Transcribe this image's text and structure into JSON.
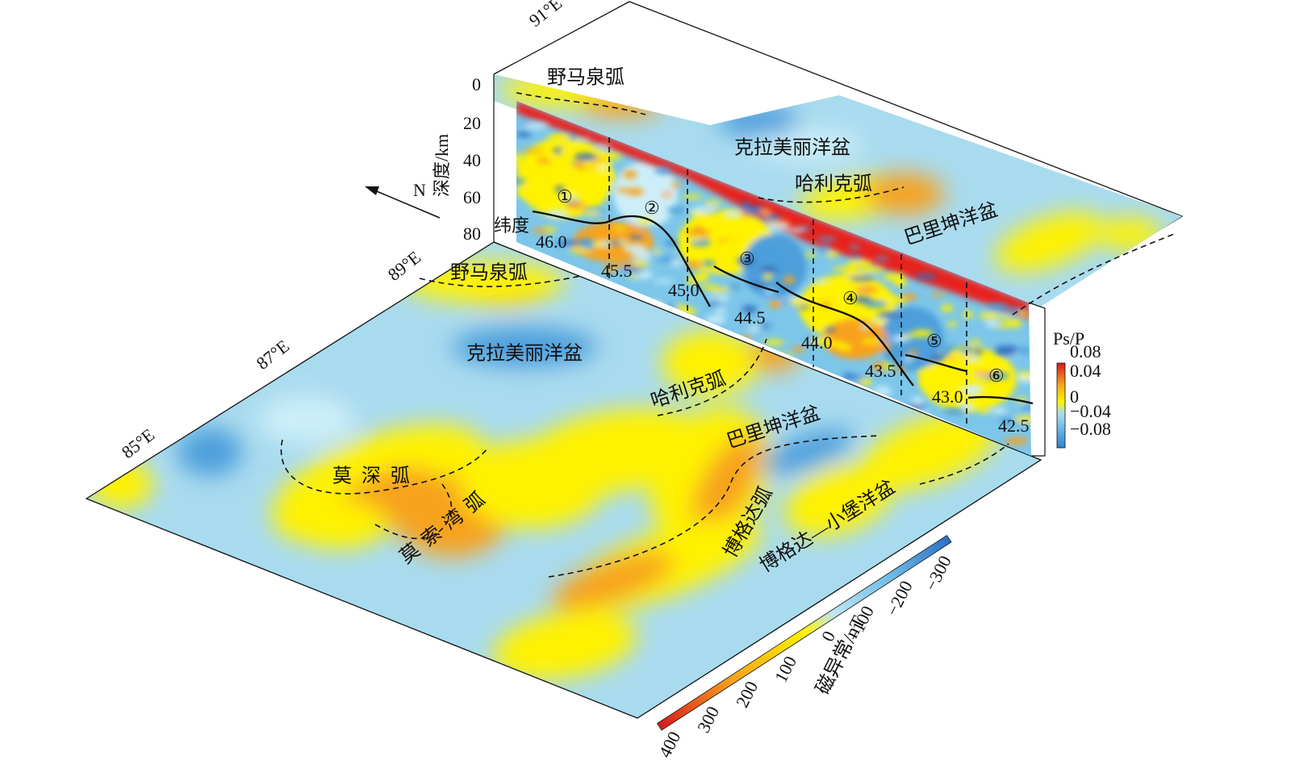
{
  "map": {
    "longitudes": [
      "91°E",
      "89°E",
      "87°E",
      "85°E"
    ],
    "north": "N",
    "labels": [
      "野马泉弧",
      "克拉美丽洋盆",
      "哈利克弧",
      "巴里坤洋盆",
      "野马泉弧",
      "克拉美丽洋盆",
      "哈利克弧",
      "巴里坤洋盆",
      "莫深弧",
      "莫索湾弧",
      "博格达弧",
      "博格达—小堡洋盆"
    ]
  },
  "profile": {
    "depth_axis": {
      "title": "深度/km",
      "ticks": [
        "0",
        "20",
        "40",
        "60",
        "80"
      ]
    },
    "latitude_axis": {
      "title": "纬度",
      "ticks": [
        "46.0",
        "45.5",
        "45.0",
        "44.5",
        "44.0",
        "43.5",
        "43.0",
        "42.5"
      ]
    },
    "segments": [
      "①",
      "②",
      "③",
      "④",
      "⑤",
      "⑥"
    ]
  },
  "colorbars": {
    "ps_p": {
      "title": "Ps/P",
      "ticks": [
        "0.08",
        "0.04",
        "0",
        "−0.04",
        "−0.08"
      ]
    },
    "magnetic": {
      "title": "磁异常/nT",
      "ticks": [
        "400",
        "300",
        "200",
        "100",
        "0",
        "−100",
        "−200",
        "−300"
      ]
    }
  }
}
